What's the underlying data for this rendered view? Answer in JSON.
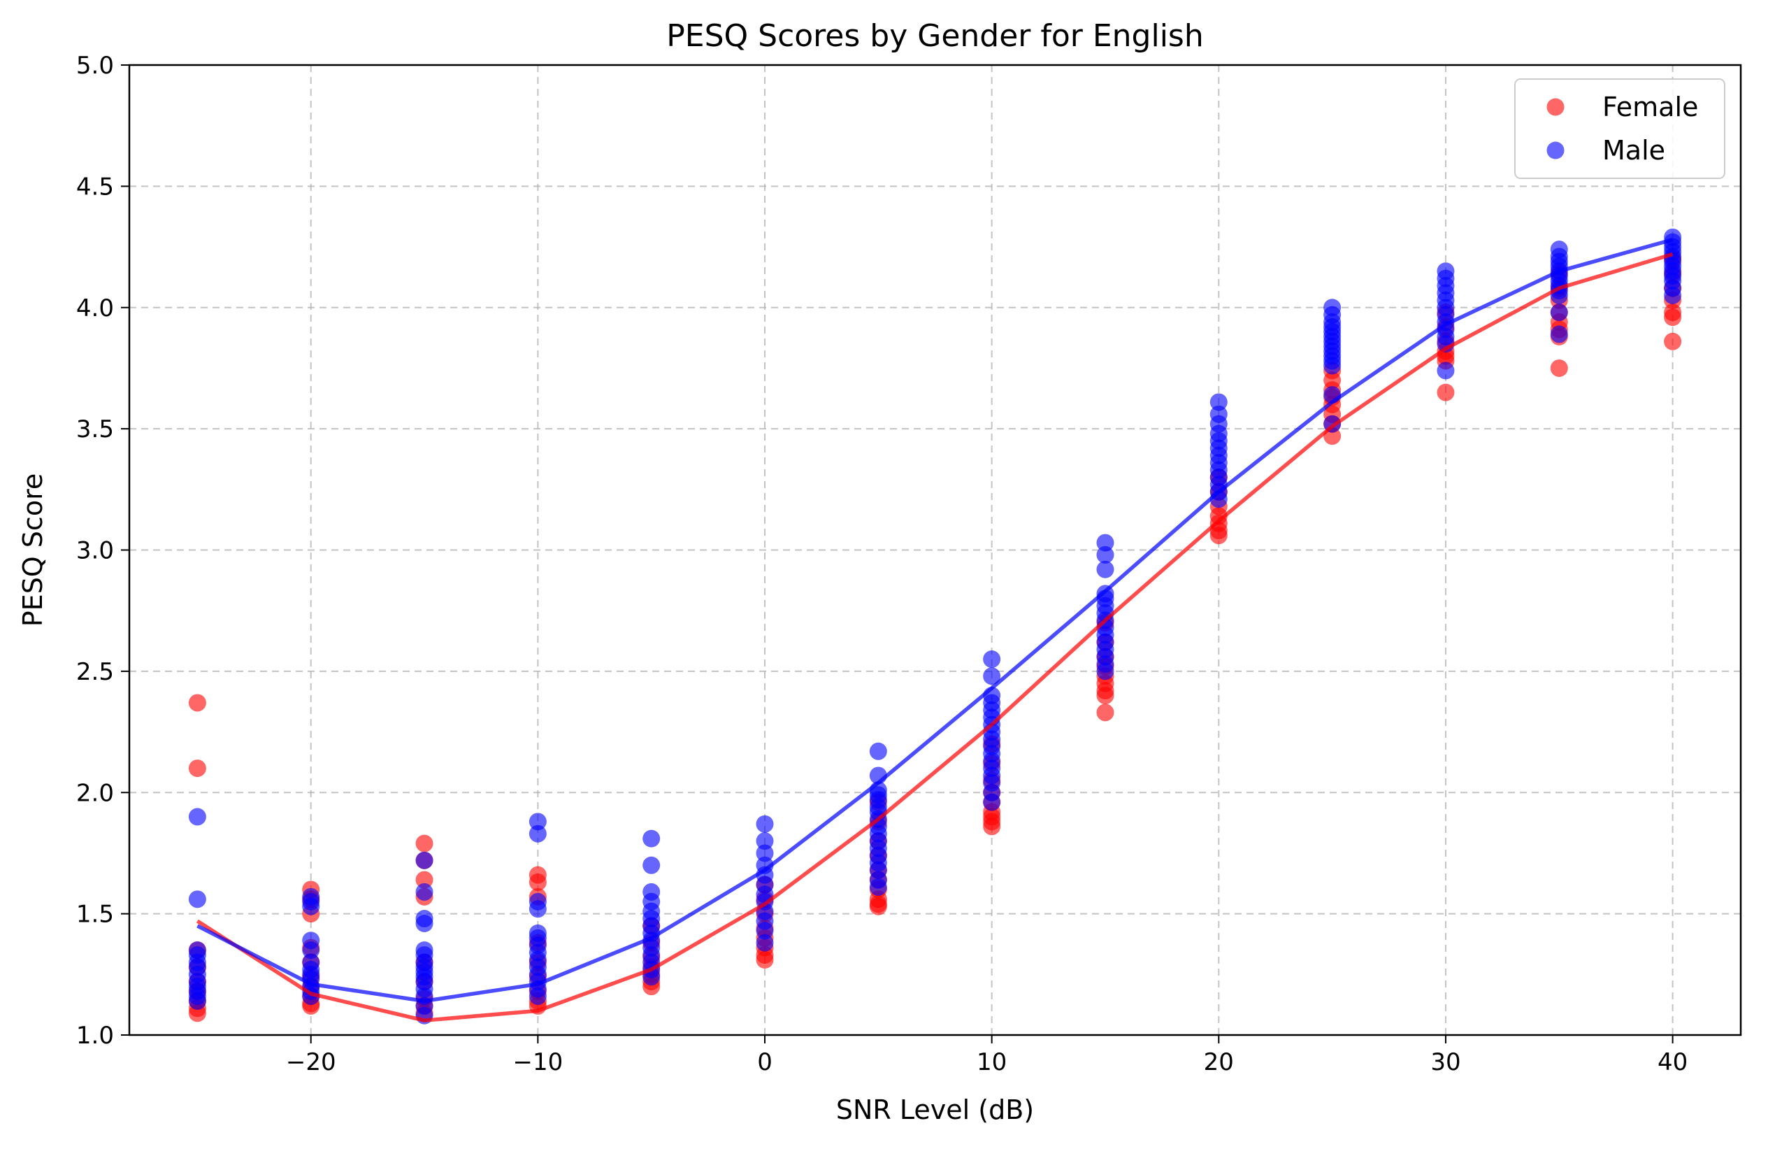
{
  "chart_data": {
    "type": "scatter",
    "title": "PESQ Scores by Gender for English",
    "xlabel": "SNR Level (dB)",
    "ylabel": "PESQ Score",
    "xlim": [
      -28,
      43
    ],
    "ylim": [
      1.0,
      5.0
    ],
    "xticks": [
      -20,
      -10,
      0,
      10,
      20,
      30,
      40
    ],
    "xtick_labels": [
      "−20",
      "−10",
      "0",
      "10",
      "20",
      "30",
      "40"
    ],
    "yticks": [
      1.0,
      1.5,
      2.0,
      2.5,
      3.0,
      3.5,
      4.0,
      4.5,
      5.0
    ],
    "ytick_labels": [
      "1.0",
      "1.5",
      "2.0",
      "2.5",
      "3.0",
      "3.5",
      "4.0",
      "4.5",
      "5.0"
    ],
    "grid": true,
    "legend_position": "top-right",
    "snr_levels": [
      -25,
      -20,
      -15,
      -10,
      -5,
      0,
      5,
      10,
      15,
      20,
      25,
      30,
      35,
      40
    ],
    "series": [
      {
        "name": "Female",
        "color": "#ff0000",
        "trend": [
          1.47,
          1.17,
          1.06,
          1.1,
          1.27,
          1.54,
          1.89,
          2.28,
          2.71,
          3.12,
          3.51,
          3.83,
          4.08,
          4.22
        ],
        "points": [
          [
            -25,
            2.37
          ],
          [
            -25,
            2.1
          ],
          [
            -25,
            1.35
          ],
          [
            -25,
            1.28
          ],
          [
            -25,
            1.22
          ],
          [
            -25,
            1.18
          ],
          [
            -25,
            1.14
          ],
          [
            -25,
            1.11
          ],
          [
            -25,
            1.09
          ],
          [
            -20,
            1.6
          ],
          [
            -20,
            1.56
          ],
          [
            -20,
            1.5
          ],
          [
            -20,
            1.36
          ],
          [
            -20,
            1.3
          ],
          [
            -20,
            1.24
          ],
          [
            -20,
            1.2
          ],
          [
            -20,
            1.16
          ],
          [
            -20,
            1.13
          ],
          [
            -20,
            1.12
          ],
          [
            -15,
            1.79
          ],
          [
            -15,
            1.72
          ],
          [
            -15,
            1.64
          ],
          [
            -15,
            1.57
          ],
          [
            -15,
            1.3
          ],
          [
            -15,
            1.22
          ],
          [
            -15,
            1.15
          ],
          [
            -15,
            1.12
          ],
          [
            -15,
            1.09
          ],
          [
            -10,
            1.66
          ],
          [
            -10,
            1.63
          ],
          [
            -10,
            1.57
          ],
          [
            -10,
            1.38
          ],
          [
            -10,
            1.3
          ],
          [
            -10,
            1.24
          ],
          [
            -10,
            1.18
          ],
          [
            -10,
            1.14
          ],
          [
            -10,
            1.12
          ],
          [
            -5,
            1.45
          ],
          [
            -5,
            1.38
          ],
          [
            -5,
            1.32
          ],
          [
            -5,
            1.28
          ],
          [
            -5,
            1.25
          ],
          [
            -5,
            1.22
          ],
          [
            -5,
            1.2
          ],
          [
            0,
            1.62
          ],
          [
            0,
            1.56
          ],
          [
            0,
            1.5
          ],
          [
            0,
            1.44
          ],
          [
            0,
            1.4
          ],
          [
            0,
            1.36
          ],
          [
            0,
            1.33
          ],
          [
            0,
            1.31
          ],
          [
            5,
            1.96
          ],
          [
            5,
            1.88
          ],
          [
            5,
            1.8
          ],
          [
            5,
            1.74
          ],
          [
            5,
            1.68
          ],
          [
            5,
            1.64
          ],
          [
            5,
            1.6
          ],
          [
            5,
            1.56
          ],
          [
            5,
            1.54
          ],
          [
            5,
            1.53
          ],
          [
            10,
            2.2
          ],
          [
            10,
            2.12
          ],
          [
            10,
            2.05
          ],
          [
            10,
            2.0
          ],
          [
            10,
            1.96
          ],
          [
            10,
            1.92
          ],
          [
            10,
            1.9
          ],
          [
            10,
            1.88
          ],
          [
            10,
            1.86
          ],
          [
            15,
            2.7
          ],
          [
            15,
            2.62
          ],
          [
            15,
            2.56
          ],
          [
            15,
            2.52
          ],
          [
            15,
            2.48
          ],
          [
            15,
            2.45
          ],
          [
            15,
            2.42
          ],
          [
            15,
            2.4
          ],
          [
            15,
            2.33
          ],
          [
            20,
            3.3
          ],
          [
            20,
            3.24
          ],
          [
            20,
            3.18
          ],
          [
            20,
            3.14
          ],
          [
            20,
            3.11
          ],
          [
            20,
            3.08
          ],
          [
            20,
            3.06
          ],
          [
            25,
            3.74
          ],
          [
            25,
            3.7
          ],
          [
            25,
            3.66
          ],
          [
            25,
            3.63
          ],
          [
            25,
            3.6
          ],
          [
            25,
            3.56
          ],
          [
            25,
            3.52
          ],
          [
            25,
            3.47
          ],
          [
            30,
            3.98
          ],
          [
            30,
            3.92
          ],
          [
            30,
            3.86
          ],
          [
            30,
            3.82
          ],
          [
            30,
            3.8
          ],
          [
            30,
            3.78
          ],
          [
            30,
            3.65
          ],
          [
            35,
            4.14
          ],
          [
            35,
            4.08
          ],
          [
            35,
            4.03
          ],
          [
            35,
            3.98
          ],
          [
            35,
            3.94
          ],
          [
            35,
            3.91
          ],
          [
            35,
            3.88
          ],
          [
            35,
            3.75
          ],
          [
            40,
            4.2
          ],
          [
            40,
            4.14
          ],
          [
            40,
            4.08
          ],
          [
            40,
            4.03
          ],
          [
            40,
            3.98
          ],
          [
            40,
            3.96
          ],
          [
            40,
            3.86
          ]
        ]
      },
      {
        "name": "Male",
        "color": "#0000ff",
        "trend": [
          1.45,
          1.21,
          1.14,
          1.21,
          1.4,
          1.68,
          2.04,
          2.43,
          2.83,
          3.24,
          3.61,
          3.93,
          4.15,
          4.28
        ],
        "points": [
          [
            -25,
            1.9
          ],
          [
            -25,
            1.56
          ],
          [
            -25,
            1.35
          ],
          [
            -25,
            1.33
          ],
          [
            -25,
            1.3
          ],
          [
            -25,
            1.28
          ],
          [
            -25,
            1.25
          ],
          [
            -25,
            1.22
          ],
          [
            -25,
            1.2
          ],
          [
            -25,
            1.18
          ],
          [
            -25,
            1.16
          ],
          [
            -25,
            1.14
          ],
          [
            -20,
            1.57
          ],
          [
            -20,
            1.55
          ],
          [
            -20,
            1.53
          ],
          [
            -20,
            1.39
          ],
          [
            -20,
            1.35
          ],
          [
            -20,
            1.3
          ],
          [
            -20,
            1.27
          ],
          [
            -20,
            1.25
          ],
          [
            -20,
            1.23
          ],
          [
            -20,
            1.2
          ],
          [
            -20,
            1.18
          ],
          [
            -20,
            1.16
          ],
          [
            -15,
            1.72
          ],
          [
            -15,
            1.59
          ],
          [
            -15,
            1.48
          ],
          [
            -15,
            1.46
          ],
          [
            -15,
            1.35
          ],
          [
            -15,
            1.33
          ],
          [
            -15,
            1.3
          ],
          [
            -15,
            1.28
          ],
          [
            -15,
            1.26
          ],
          [
            -15,
            1.24
          ],
          [
            -15,
            1.22
          ],
          [
            -15,
            1.19
          ],
          [
            -15,
            1.16
          ],
          [
            -15,
            1.12
          ],
          [
            -15,
            1.08
          ],
          [
            -10,
            1.88
          ],
          [
            -10,
            1.83
          ],
          [
            -10,
            1.55
          ],
          [
            -10,
            1.52
          ],
          [
            -10,
            1.42
          ],
          [
            -10,
            1.4
          ],
          [
            -10,
            1.37
          ],
          [
            -10,
            1.34
          ],
          [
            -10,
            1.31
          ],
          [
            -10,
            1.28
          ],
          [
            -10,
            1.25
          ],
          [
            -10,
            1.22
          ],
          [
            -10,
            1.19
          ],
          [
            -10,
            1.16
          ],
          [
            -5,
            1.81
          ],
          [
            -5,
            1.7
          ],
          [
            -5,
            1.59
          ],
          [
            -5,
            1.55
          ],
          [
            -5,
            1.51
          ],
          [
            -5,
            1.48
          ],
          [
            -5,
            1.45
          ],
          [
            -5,
            1.42
          ],
          [
            -5,
            1.39
          ],
          [
            -5,
            1.36
          ],
          [
            -5,
            1.33
          ],
          [
            -5,
            1.3
          ],
          [
            -5,
            1.27
          ],
          [
            -5,
            1.24
          ],
          [
            0,
            1.87
          ],
          [
            0,
            1.8
          ],
          [
            0,
            1.75
          ],
          [
            0,
            1.7
          ],
          [
            0,
            1.66
          ],
          [
            0,
            1.62
          ],
          [
            0,
            1.58
          ],
          [
            0,
            1.55
          ],
          [
            0,
            1.51
          ],
          [
            0,
            1.47
          ],
          [
            0,
            1.43
          ],
          [
            0,
            1.38
          ],
          [
            5,
            2.17
          ],
          [
            5,
            2.07
          ],
          [
            5,
            2.01
          ],
          [
            5,
            1.99
          ],
          [
            5,
            1.97
          ],
          [
            5,
            1.94
          ],
          [
            5,
            1.92
          ],
          [
            5,
            1.89
          ],
          [
            5,
            1.86
          ],
          [
            5,
            1.83
          ],
          [
            5,
            1.8
          ],
          [
            5,
            1.77
          ],
          [
            5,
            1.74
          ],
          [
            5,
            1.71
          ],
          [
            5,
            1.68
          ],
          [
            5,
            1.64
          ],
          [
            5,
            1.61
          ],
          [
            10,
            2.55
          ],
          [
            10,
            2.48
          ],
          [
            10,
            2.4
          ],
          [
            10,
            2.37
          ],
          [
            10,
            2.34
          ],
          [
            10,
            2.31
          ],
          [
            10,
            2.28
          ],
          [
            10,
            2.25
          ],
          [
            10,
            2.22
          ],
          [
            10,
            2.19
          ],
          [
            10,
            2.16
          ],
          [
            10,
            2.13
          ],
          [
            10,
            2.1
          ],
          [
            10,
            2.07
          ],
          [
            10,
            2.04
          ],
          [
            10,
            2.0
          ],
          [
            10,
            1.96
          ],
          [
            15,
            3.03
          ],
          [
            15,
            2.98
          ],
          [
            15,
            2.92
          ],
          [
            15,
            2.82
          ],
          [
            15,
            2.8
          ],
          [
            15,
            2.77
          ],
          [
            15,
            2.74
          ],
          [
            15,
            2.71
          ],
          [
            15,
            2.68
          ],
          [
            15,
            2.65
          ],
          [
            15,
            2.62
          ],
          [
            15,
            2.59
          ],
          [
            15,
            2.56
          ],
          [
            15,
            2.53
          ],
          [
            15,
            2.5
          ],
          [
            20,
            3.61
          ],
          [
            20,
            3.56
          ],
          [
            20,
            3.52
          ],
          [
            20,
            3.48
          ],
          [
            20,
            3.45
          ],
          [
            20,
            3.42
          ],
          [
            20,
            3.39
          ],
          [
            20,
            3.36
          ],
          [
            20,
            3.33
          ],
          [
            20,
            3.3
          ],
          [
            20,
            3.27
          ],
          [
            20,
            3.24
          ],
          [
            20,
            3.21
          ],
          [
            25,
            4.0
          ],
          [
            25,
            3.97
          ],
          [
            25,
            3.94
          ],
          [
            25,
            3.92
          ],
          [
            25,
            3.9
          ],
          [
            25,
            3.88
          ],
          [
            25,
            3.86
          ],
          [
            25,
            3.84
          ],
          [
            25,
            3.82
          ],
          [
            25,
            3.8
          ],
          [
            25,
            3.78
          ],
          [
            25,
            3.76
          ],
          [
            25,
            3.64
          ],
          [
            25,
            3.52
          ],
          [
            30,
            4.15
          ],
          [
            30,
            4.12
          ],
          [
            30,
            4.09
          ],
          [
            30,
            4.06
          ],
          [
            30,
            4.03
          ],
          [
            30,
            4.0
          ],
          [
            30,
            3.97
          ],
          [
            30,
            3.94
          ],
          [
            30,
            3.91
          ],
          [
            30,
            3.88
          ],
          [
            30,
            3.85
          ],
          [
            30,
            3.74
          ],
          [
            35,
            4.24
          ],
          [
            35,
            4.21
          ],
          [
            35,
            4.19
          ],
          [
            35,
            4.17
          ],
          [
            35,
            4.15
          ],
          [
            35,
            4.13
          ],
          [
            35,
            4.11
          ],
          [
            35,
            4.09
          ],
          [
            35,
            4.07
          ],
          [
            35,
            4.05
          ],
          [
            35,
            3.98
          ],
          [
            35,
            3.89
          ],
          [
            40,
            4.29
          ],
          [
            40,
            4.27
          ],
          [
            40,
            4.25
          ],
          [
            40,
            4.23
          ],
          [
            40,
            4.21
          ],
          [
            40,
            4.19
          ],
          [
            40,
            4.17
          ],
          [
            40,
            4.15
          ],
          [
            40,
            4.13
          ],
          [
            40,
            4.11
          ],
          [
            40,
            4.08
          ],
          [
            40,
            4.05
          ]
        ]
      }
    ]
  }
}
